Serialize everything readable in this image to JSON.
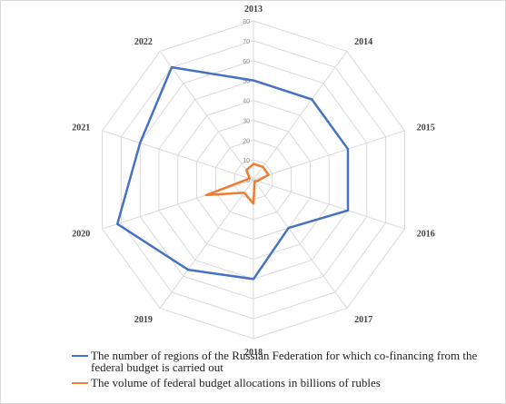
{
  "chart_data": {
    "type": "radar",
    "categories": [
      "2013",
      "2014",
      "2015",
      "2016",
      "2017",
      "2018",
      "2019",
      "2020",
      "2021",
      "2022"
    ],
    "radial_ticks": [
      "0",
      "10",
      "20",
      "30",
      "40",
      "50",
      "60",
      "70",
      "80"
    ],
    "rlim": [
      0,
      80
    ],
    "grid": true,
    "legend_position": "bottom",
    "series": [
      {
        "name": "The number of regions of the Russian Federation for which co-financing from the federal budget is carried out",
        "color": "#4472c4",
        "values": [
          50,
          50,
          50,
          50,
          30,
          50,
          56,
          72,
          60,
          70
        ]
      },
      {
        "name": "The volume of federal budget allocations in billions of rubles",
        "color": "#ed7d31",
        "values": [
          8,
          8,
          8,
          2,
          1,
          12,
          8,
          25,
          2,
          6
        ]
      }
    ]
  }
}
